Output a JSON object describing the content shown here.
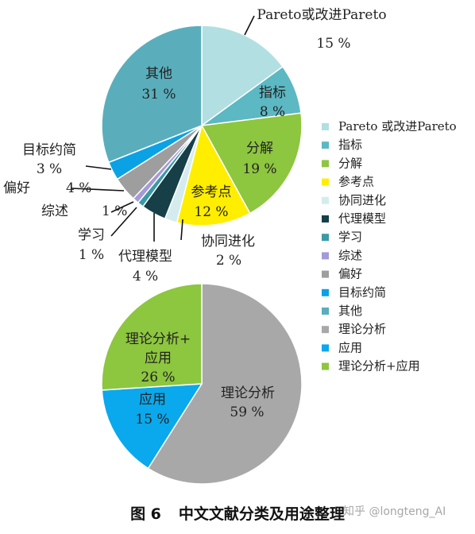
{
  "caption": {
    "figure_number": "图 6",
    "title": "中文文献分类及用途整理"
  },
  "watermark": "知乎 @longteng_AI",
  "chart_data": [
    {
      "type": "pie",
      "unit": "%",
      "slices": [
        {
          "name": "Pareto或改进Pareto",
          "display": "Pareto或改进Pareto",
          "value": 15,
          "color": "#b2dfe2"
        },
        {
          "name": "指标",
          "display": "指标",
          "value": 8,
          "color": "#5cb8c2"
        },
        {
          "name": "分解",
          "display": "分解",
          "value": 19,
          "color": "#8dc63f"
        },
        {
          "name": "参考点",
          "display": "参考点",
          "value": 12,
          "color": "#ffee00"
        },
        {
          "name": "协同进化",
          "display": "协同进化",
          "value": 2,
          "color": "#d5ecef"
        },
        {
          "name": "代理模型",
          "display": "代理模型",
          "value": 4,
          "color": "#173f48"
        },
        {
          "name": "学习",
          "display": "学习",
          "value": 1,
          "color": "#3a9aa5"
        },
        {
          "name": "综述",
          "display": "综述",
          "value": 1,
          "color": "#a59ad8"
        },
        {
          "name": "偏好",
          "display": "偏好",
          "value": 4,
          "color": "#9e9e9e"
        },
        {
          "name": "目标约简",
          "display": "目标约简",
          "value": 3,
          "color": "#0aa2e5"
        },
        {
          "name": "其他",
          "display": "其他",
          "value": 31,
          "color": "#5aaebc"
        }
      ]
    },
    {
      "type": "pie",
      "unit": "%",
      "slices": [
        {
          "name": "理论分析",
          "display": "理论分析",
          "value": 59,
          "color": "#a8a8a8"
        },
        {
          "name": "应用",
          "display": "应用",
          "value": 15,
          "color": "#0aa8ec"
        },
        {
          "name": "理论分析+应用",
          "display": "理论分析+应用",
          "value": 26,
          "color": "#8dc63f"
        }
      ]
    }
  ],
  "legend": {
    "placement": "right",
    "entries": [
      {
        "label": "Pareto 或改进Pareto",
        "color": "#b2dfe2"
      },
      {
        "label": "指标",
        "color": "#5cb8c2"
      },
      {
        "label": "分解",
        "color": "#8dc63f"
      },
      {
        "label": "参考点",
        "color": "#ffee00"
      },
      {
        "label": "协同进化",
        "color": "#d5ecef"
      },
      {
        "label": "代理模型",
        "color": "#173f48"
      },
      {
        "label": "学习",
        "color": "#3a9aa5"
      },
      {
        "label": "综述",
        "color": "#a59ad8"
      },
      {
        "label": "偏好",
        "color": "#9e9e9e"
      },
      {
        "label": "目标约简",
        "color": "#0aa2e5"
      },
      {
        "label": "其他",
        "color": "#5aaebc"
      },
      {
        "label": "理论分析",
        "color": "#a8a8a8"
      },
      {
        "label": "应用",
        "color": "#0aa8ec"
      },
      {
        "label": "理论分析+应用",
        "color": "#8dc63f"
      }
    ]
  }
}
